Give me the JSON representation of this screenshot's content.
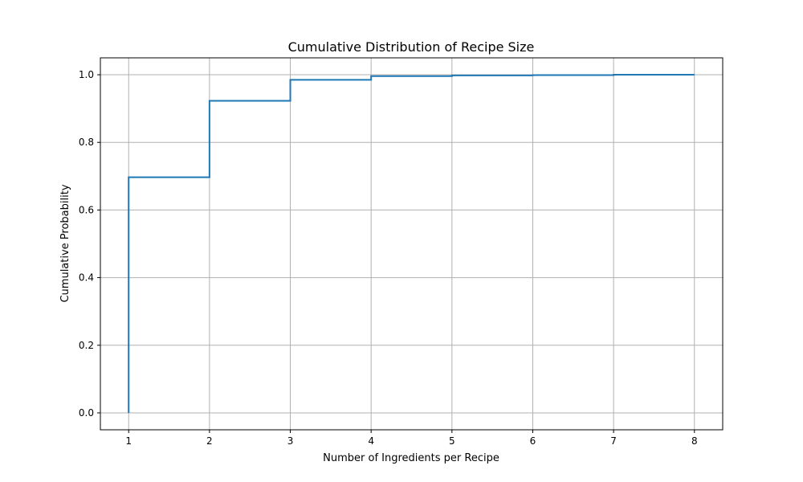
{
  "chart_data": {
    "type": "line",
    "drawstyle": "steps-post",
    "title": "Cumulative Distribution of Recipe Size",
    "xlabel": "Number of Ingredients per Recipe",
    "ylabel": "Cumulative Probability",
    "xlim": [
      0.65,
      8.35
    ],
    "ylim": [
      -0.05,
      1.05
    ],
    "grid": true,
    "x_ticks": [
      1,
      2,
      3,
      4,
      5,
      6,
      7,
      8
    ],
    "y_ticks": [
      0.0,
      0.2,
      0.4,
      0.6,
      0.8,
      1.0
    ],
    "x_tick_labels": [
      "1",
      "2",
      "3",
      "4",
      "5",
      "6",
      "7",
      "8"
    ],
    "y_tick_labels": [
      "0.0",
      "0.2",
      "0.4",
      "0.6",
      "0.8",
      "1.0"
    ],
    "series": [
      {
        "color": "#1f77b4",
        "x": [
          1,
          1,
          2,
          3,
          4,
          5,
          6,
          7,
          8
        ],
        "y": [
          0.0,
          0.697,
          0.923,
          0.985,
          0.996,
          0.998,
          0.999,
          1.0,
          1.0
        ]
      }
    ]
  }
}
